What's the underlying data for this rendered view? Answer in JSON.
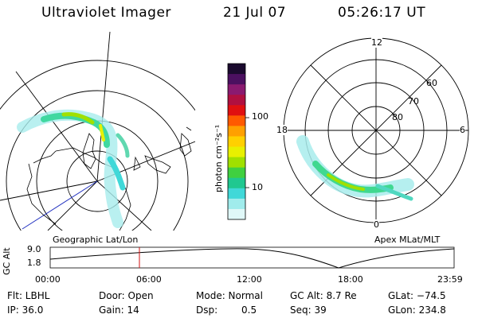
{
  "header": {
    "title": "Ultraviolet Imager",
    "date": "21 Jul 07",
    "time": "05:26:17 UT"
  },
  "colorbar": {
    "unit_label": "photon cm⁻²s⁻¹",
    "ticks": [
      "100",
      "10"
    ],
    "colors": [
      "#1a0a2e",
      "#4b1060",
      "#8a1a70",
      "#b01040",
      "#e01010",
      "#ff5a00",
      "#ffa000",
      "#ffd000",
      "#e8f000",
      "#a0e000",
      "#40d040",
      "#20c890",
      "#40d8d8",
      "#a0ecec",
      "#e0f8f8"
    ]
  },
  "left_map": {
    "label": "Geographic Lat/Lon"
  },
  "right_map": {
    "label": "Apex  MLat/MLT",
    "mlt_labels": {
      "top": "12",
      "left": "18",
      "right": "6",
      "bottom": "0"
    },
    "lat_labels": [
      "60",
      "70",
      "80"
    ]
  },
  "altitude_plot": {
    "ylabel": "GC Alt",
    "yticks": [
      "9.0",
      "1.8"
    ],
    "xticks": [
      "00:00",
      "06:00",
      "12:00",
      "18:00",
      "23:59"
    ],
    "current_time_color": "#d01010"
  },
  "status": {
    "filter": "Flt: LBHL",
    "door": "Door: Open",
    "mode": "Mode: Normal",
    "gc_alt": "GC Alt: 8.7 Re",
    "glat": "GLat: −74.5",
    "ip": "IP: 36.0",
    "gain": "Gain: 14",
    "dsp_label": "Dsp:",
    "dsp_value": "0.5",
    "seq": "Seq: 39",
    "glon": "GLon: 234.8"
  }
}
